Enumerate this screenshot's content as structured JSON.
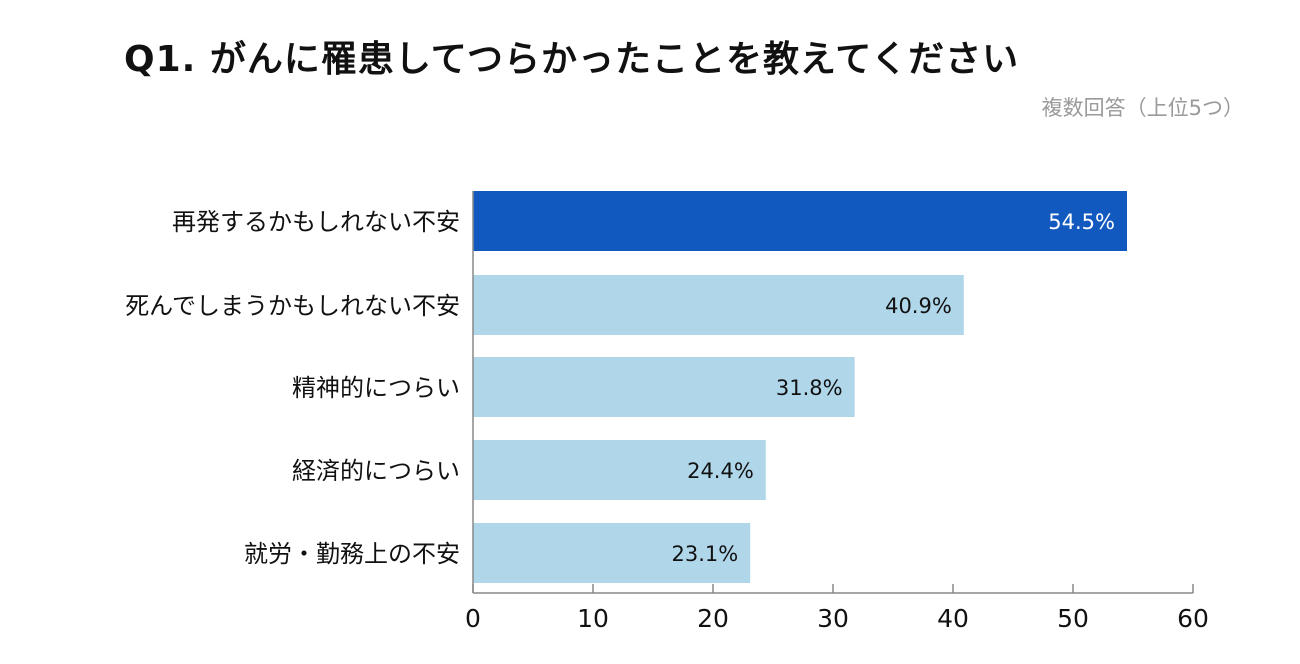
{
  "chart_data": {
    "type": "bar",
    "orientation": "horizontal",
    "title": "Q1. がんに罹患してつらかったことを教えてください",
    "subtitle": "複数回答（上位5つ）",
    "categories": [
      "再発するかもしれない不安",
      "死んでしまうかもしれない不安",
      "精神的につらい",
      "経済的につらい",
      "就労・勤務上の不安"
    ],
    "values": [
      54.5,
      40.9,
      31.8,
      24.4,
      23.1
    ],
    "data_labels": [
      "54.5%",
      "40.9%",
      "31.8%",
      "24.4%",
      "23.1%"
    ],
    "xlim": [
      0,
      60
    ],
    "xticks": [
      "0",
      "10",
      "20",
      "30",
      "40",
      "50",
      "60"
    ],
    "grid": false,
    "colors": {
      "highlight": "#1159be",
      "default": "#b0d6ea",
      "highlight_label": "#ffffff",
      "default_label": "#111111",
      "axis": "#888888"
    }
  }
}
